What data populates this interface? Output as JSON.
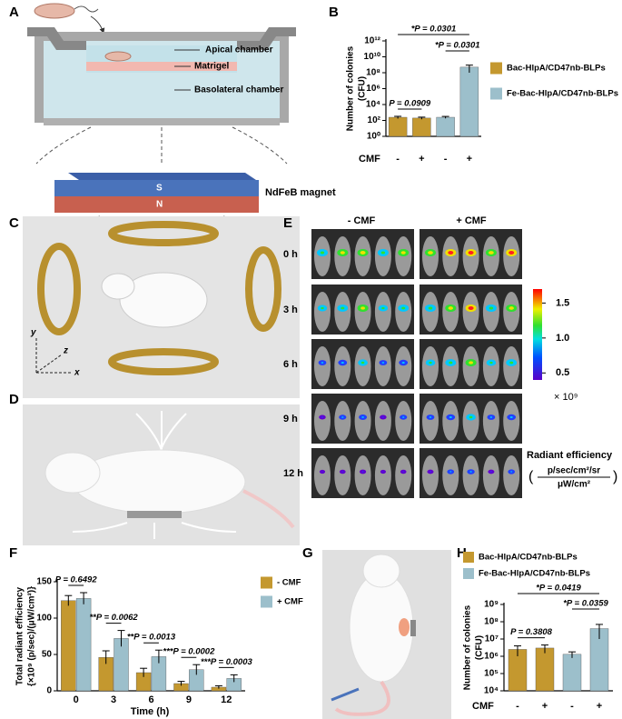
{
  "panel_labels": [
    "A",
    "B",
    "C",
    "D",
    "E",
    "F",
    "G",
    "H"
  ],
  "panel_a": {
    "labels": [
      "Apical chamber",
      "Matrigel",
      "Basolateral chamber"
    ],
    "magnet": "NdFeB magnet",
    "poles": [
      "S",
      "N"
    ]
  },
  "panel_c": {
    "axes": [
      "y",
      "z",
      "x"
    ]
  },
  "panel_e": {
    "columns": [
      "- CMF",
      "+ CMF"
    ],
    "rows": [
      "0 h",
      "3 h",
      "6 h",
      "9 h",
      "12 h"
    ],
    "colorbar": {
      "lim": [
        0.4,
        1.7
      ],
      "ticks": [
        1.5,
        {
          "value": 1,
          "label": "1.0"
        },
        0.5
      ],
      "unit": "× 10⁹",
      "title": "Radiant efficiency",
      "brackets": [
        "(",
        ")"
      ],
      "unit_numerator": "p/sec/cm²/sr",
      "unit_denominator": "μW/cm²"
    }
  },
  "chart_data": [
    {
      "type": "bar",
      "log_y": true,
      "categories": [
        "-",
        "+",
        "-",
        "+"
      ],
      "x_label": "CMF",
      "y_label": [
        "Number of colonies",
        "(CFU)"
      ],
      "ylim": [
        1,
        1000000000000
      ],
      "yticks": [
        {
          "value": 1,
          "label": "10⁰"
        },
        {
          "value": 100,
          "label": "10²"
        },
        {
          "value": 10000,
          "label": "10⁴"
        },
        {
          "value": 1000000,
          "label": "10⁶"
        },
        {
          "value": 100000000,
          "label": "10⁸"
        },
        {
          "value": 10000000000,
          "label": "10¹⁰"
        },
        {
          "value": 1000000000000,
          "label": "10¹²"
        }
      ],
      "series": [
        {
          "name": "Bac-HlpA/CD47nb-BLPs",
          "color": "#c4982f",
          "values": [
            250,
            200,
            null,
            null
          ],
          "errors": [
            80,
            60,
            null,
            null
          ]
        },
        {
          "name": "Fe-Bac-HlpA/CD47nb-BLPs",
          "color": "#9cbfcb",
          "values": [
            null,
            null,
            250,
            500000000
          ],
          "errors": [
            null,
            null,
            70,
            400000000
          ]
        }
      ],
      "annotations": [
        "P = 0.0909",
        "*P = 0.0301",
        "*P = 0.0301"
      ]
    },
    {
      "type": "bar",
      "categories": [
        "0",
        "3",
        "6",
        "9",
        "12"
      ],
      "x_label": "Time (h)",
      "y_label": [
        "Total radiant efficiency",
        "{×10⁹ (p/sec)/(μW/cm²)}"
      ],
      "ylim": [
        0,
        150
      ],
      "yticks": [
        0,
        50,
        100,
        150
      ],
      "series": [
        {
          "name": "- CMF",
          "color": "#c4982f",
          "values": [
            124,
            46,
            25,
            10,
            5
          ],
          "errors": [
            7,
            9,
            6,
            3,
            2
          ]
        },
        {
          "name": "+ CMF",
          "color": "#9cbfcb",
          "values": [
            127,
            72,
            47,
            29,
            17
          ],
          "errors": [
            8,
            11,
            9,
            7,
            5
          ]
        }
      ],
      "annotations": [
        "P = 0.6492",
        "**P = 0.0062",
        "**P = 0.0013",
        "***P = 0.0002",
        "***P = 0.0003"
      ]
    },
    {
      "type": "bar",
      "log_y": true,
      "categories": [
        "-",
        "+",
        "-",
        "+"
      ],
      "x_label": "CMF",
      "y_label": [
        "Number of colonies",
        "(CFU)"
      ],
      "ylim": [
        10000,
        1000000000
      ],
      "yticks": [
        {
          "value": 10000,
          "label": "10⁴"
        },
        {
          "value": 100000,
          "label": "10⁵"
        },
        {
          "value": 1000000,
          "label": "10⁶"
        },
        {
          "value": 10000000,
          "label": "10⁷"
        },
        {
          "value": 100000000,
          "label": "10⁸"
        },
        {
          "value": 1000000000,
          "label": "10⁹"
        }
      ],
      "series": [
        {
          "name": "Bac-HlpA/CD47nb-BLPs",
          "color": "#c4982f",
          "values": [
            2500000,
            3000000,
            null,
            null
          ],
          "errors": [
            1500000,
            1500000,
            null,
            null
          ]
        },
        {
          "name": "Fe-Bac-HlpA/CD47nb-BLPs",
          "color": "#9cbfcb",
          "values": [
            null,
            null,
            1300000,
            40000000
          ],
          "errors": [
            null,
            null,
            500000,
            30000000
          ]
        }
      ],
      "annotations": [
        "P = 0.3808",
        "*P = 0.0419",
        "*P = 0.0359"
      ]
    }
  ]
}
